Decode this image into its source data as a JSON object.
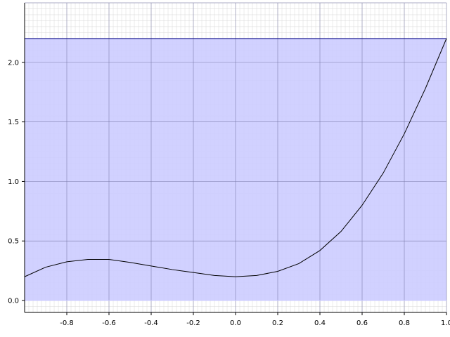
{
  "chart_data": {
    "type": "area",
    "title": "",
    "xlabel": "",
    "ylabel": "",
    "xlim": [
      -1.0,
      1.0
    ],
    "ylim": [
      -0.1,
      2.5
    ],
    "grid": {
      "major": true,
      "minor": true
    },
    "x_ticks": [
      -0.8,
      -0.6,
      -0.4,
      -0.2,
      0.0,
      0.2,
      0.4,
      0.6,
      0.8,
      1.0
    ],
    "x_tick_labels": [
      "-0.8",
      "-0.6",
      "-0.4",
      "-0.2",
      "0.0",
      "0.2",
      "0.4",
      "0.6",
      "0.8",
      "1.0"
    ],
    "y_ticks": [
      0.0,
      0.5,
      1.0,
      1.5,
      2.0
    ],
    "y_tick_labels": [
      "0.0",
      "0.5",
      "1.0",
      "1.5",
      "2.0"
    ],
    "band": {
      "y_min": 0.0,
      "y_max": 2.2,
      "color": "#ccccff",
      "edge_color": "#000080"
    },
    "series": [
      {
        "color": "#000000",
        "x": [
          -1.0,
          -0.9,
          -0.8,
          -0.7,
          -0.6,
          -0.5,
          -0.4,
          -0.3,
          -0.2,
          -0.1,
          0.0,
          0.1,
          0.2,
          0.3,
          0.4,
          0.5,
          0.6,
          0.7,
          0.8,
          0.9,
          1.0
        ],
        "y": [
          0.2,
          0.28,
          0.325,
          0.345,
          0.345,
          0.32,
          0.29,
          0.26,
          0.235,
          0.21,
          0.2,
          0.21,
          0.245,
          0.31,
          0.42,
          0.58,
          0.8,
          1.07,
          1.4,
          1.78,
          2.2
        ]
      }
    ]
  }
}
